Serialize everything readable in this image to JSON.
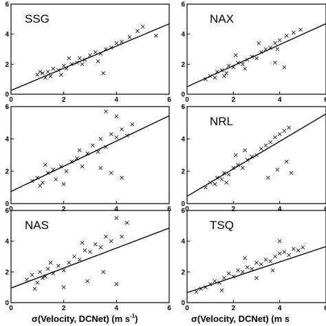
{
  "chart_data": [
    {
      "type": "scatter",
      "title": "SSG",
      "xlim": [
        0,
        6
      ],
      "ylim": [
        0,
        6
      ],
      "xticks": [
        "0",
        "2",
        "4",
        "6"
      ],
      "yticks": [
        "0",
        "2",
        "4",
        "6"
      ],
      "fit": {
        "intercept": 0.25,
        "slope": 0.74
      },
      "points": [
        [
          1.0,
          1.3
        ],
        [
          1.2,
          1.4
        ],
        [
          1.4,
          1.5
        ],
        [
          1.5,
          1.2
        ],
        [
          1.6,
          1.7
        ],
        [
          1.8,
          1.6
        ],
        [
          2.0,
          1.9
        ],
        [
          2.1,
          1.7
        ],
        [
          2.3,
          2.0
        ],
        [
          2.5,
          2.1
        ],
        [
          2.6,
          2.4
        ],
        [
          2.8,
          2.3
        ],
        [
          3.0,
          2.6
        ],
        [
          3.2,
          2.8
        ],
        [
          3.4,
          2.7
        ],
        [
          3.6,
          3.0
        ],
        [
          3.8,
          3.1
        ],
        [
          4.0,
          3.4
        ],
        [
          4.2,
          3.5
        ],
        [
          4.5,
          3.8
        ],
        [
          4.8,
          4.2
        ],
        [
          5.0,
          4.5
        ],
        [
          5.5,
          3.9
        ],
        [
          3.5,
          1.4
        ],
        [
          2.2,
          2.4
        ],
        [
          1.9,
          1.3
        ],
        [
          1.3,
          1.1
        ],
        [
          2.7,
          2.0
        ],
        [
          3.3,
          2.2
        ],
        [
          1.1,
          1.5
        ]
      ]
    },
    {
      "type": "scatter",
      "title": "NAX",
      "xlim": [
        0,
        6
      ],
      "ylim": [
        0,
        6
      ],
      "xticks": [
        "0",
        "2",
        "4",
        "6"
      ],
      "yticks": [
        "0",
        "2",
        "4",
        "6"
      ],
      "fit": {
        "intercept": 0.5,
        "slope": 0.7
      },
      "points": [
        [
          0.8,
          1.0
        ],
        [
          1.0,
          1.2
        ],
        [
          1.2,
          1.1
        ],
        [
          1.3,
          1.5
        ],
        [
          1.5,
          1.6
        ],
        [
          1.7,
          1.4
        ],
        [
          1.8,
          1.9
        ],
        [
          2.0,
          1.8
        ],
        [
          2.2,
          2.1
        ],
        [
          2.4,
          2.0
        ],
        [
          2.6,
          2.3
        ],
        [
          2.8,
          2.5
        ],
        [
          3.0,
          2.4
        ],
        [
          3.2,
          2.8
        ],
        [
          3.4,
          3.0
        ],
        [
          3.6,
          3.1
        ],
        [
          3.8,
          3.4
        ],
        [
          4.0,
          3.6
        ],
        [
          4.3,
          3.9
        ],
        [
          4.6,
          4.1
        ],
        [
          4.9,
          4.3
        ],
        [
          4.2,
          1.8
        ],
        [
          3.8,
          2.1
        ],
        [
          3.9,
          3.0
        ],
        [
          2.1,
          2.6
        ],
        [
          1.6,
          1.2
        ],
        [
          2.5,
          1.7
        ],
        [
          3.1,
          3.4
        ]
      ]
    },
    {
      "type": "scatter",
      "title": "",
      "xlim": [
        0,
        6
      ],
      "ylim": [
        0,
        6
      ],
      "xticks": [
        "0",
        "2",
        "4",
        "6"
      ],
      "yticks": [
        "0",
        "2",
        "4",
        "6"
      ],
      "fit": {
        "intercept": 0.75,
        "slope": 0.78
      },
      "points": [
        [
          0.8,
          1.4
        ],
        [
          1.0,
          1.6
        ],
        [
          1.2,
          1.3
        ],
        [
          1.4,
          1.9
        ],
        [
          1.6,
          2.1
        ],
        [
          1.7,
          1.5
        ],
        [
          1.9,
          2.3
        ],
        [
          2.1,
          2.0
        ],
        [
          2.3,
          2.6
        ],
        [
          2.5,
          2.8
        ],
        [
          2.7,
          2.3
        ],
        [
          2.9,
          3.1
        ],
        [
          3.1,
          3.6
        ],
        [
          3.3,
          3.2
        ],
        [
          3.4,
          4.0
        ],
        [
          3.6,
          3.5
        ],
        [
          3.8,
          4.3
        ],
        [
          4.0,
          4.1
        ],
        [
          4.2,
          4.6
        ],
        [
          4.4,
          4.2
        ],
        [
          3.6,
          5.7
        ],
        [
          4.0,
          5.4
        ],
        [
          4.6,
          4.9
        ],
        [
          3.8,
          1.9
        ],
        [
          4.2,
          1.6
        ],
        [
          3.4,
          2.2
        ],
        [
          1.3,
          2.4
        ],
        [
          2.0,
          1.2
        ],
        [
          2.6,
          3.3
        ],
        [
          1.1,
          1.1
        ]
      ]
    },
    {
      "type": "scatter",
      "title": "NRL",
      "xlim": [
        0,
        6
      ],
      "ylim": [
        0,
        6
      ],
      "xticks": [
        "0",
        "2",
        "4",
        "6"
      ],
      "yticks": [
        "0",
        "2",
        "4",
        "6"
      ],
      "fit": {
        "intercept": 0.45,
        "slope": 0.85
      },
      "points": [
        [
          0.8,
          1.0
        ],
        [
          1.0,
          1.3
        ],
        [
          1.2,
          1.2
        ],
        [
          1.3,
          1.6
        ],
        [
          1.5,
          1.5
        ],
        [
          1.6,
          1.9
        ],
        [
          1.8,
          1.8
        ],
        [
          2.0,
          2.2
        ],
        [
          2.2,
          2.4
        ],
        [
          2.4,
          2.2
        ],
        [
          2.6,
          2.7
        ],
        [
          2.8,
          2.9
        ],
        [
          3.0,
          3.0
        ],
        [
          3.2,
          3.4
        ],
        [
          3.4,
          3.6
        ],
        [
          3.6,
          3.8
        ],
        [
          3.8,
          4.1
        ],
        [
          4.0,
          4.3
        ],
        [
          4.2,
          4.5
        ],
        [
          4.4,
          4.7
        ],
        [
          4.5,
          1.9
        ],
        [
          3.9,
          2.1
        ],
        [
          3.5,
          1.6
        ],
        [
          4.3,
          2.6
        ],
        [
          2.1,
          3.0
        ],
        [
          1.7,
          1.3
        ],
        [
          2.5,
          3.3
        ]
      ]
    },
    {
      "type": "scatter",
      "title": "NAS",
      "xlim": [
        0,
        6
      ],
      "ylim": [
        0,
        6
      ],
      "xticks": [
        "0",
        "2",
        "4",
        "6"
      ],
      "yticks": [
        "0",
        "2",
        "4",
        "6"
      ],
      "fit": {
        "intercept": 0.95,
        "slope": 0.65
      },
      "points": [
        [
          0.6,
          1.5
        ],
        [
          0.8,
          1.8
        ],
        [
          1.0,
          1.3
        ],
        [
          1.1,
          2.0
        ],
        [
          1.3,
          1.7
        ],
        [
          1.4,
          2.2
        ],
        [
          1.6,
          1.9
        ],
        [
          1.8,
          2.4
        ],
        [
          2.0,
          2.1
        ],
        [
          2.2,
          2.6
        ],
        [
          2.4,
          3.0
        ],
        [
          2.6,
          2.8
        ],
        [
          2.8,
          3.4
        ],
        [
          3.0,
          3.3
        ],
        [
          3.2,
          3.8
        ],
        [
          3.4,
          3.6
        ],
        [
          3.6,
          4.3
        ],
        [
          3.8,
          4.0
        ],
        [
          4.0,
          5.5
        ],
        [
          4.2,
          4.3
        ],
        [
          4.4,
          5.2
        ],
        [
          3.5,
          2.0
        ],
        [
          2.9,
          1.4
        ],
        [
          4.0,
          1.2
        ],
        [
          2.0,
          1.0
        ],
        [
          0.9,
          0.9
        ],
        [
          1.5,
          2.6
        ],
        [
          2.7,
          3.9
        ],
        [
          1.2,
          1.6
        ]
      ]
    },
    {
      "type": "scatter",
      "title": "TSQ",
      "xlim": [
        0,
        6
      ],
      "ylim": [
        0,
        6
      ],
      "xticks": [
        "0",
        "2",
        "4",
        "6"
      ],
      "yticks": [
        "0",
        "2",
        "4",
        "6"
      ],
      "fit": {
        "intercept": 0.65,
        "slope": 0.5
      },
      "points": [
        [
          0.4,
          0.7
        ],
        [
          0.6,
          0.9
        ],
        [
          0.8,
          1.0
        ],
        [
          1.0,
          1.2
        ],
        [
          1.2,
          1.4
        ],
        [
          1.4,
          1.3
        ],
        [
          1.6,
          1.6
        ],
        [
          1.8,
          1.9
        ],
        [
          2.0,
          1.7
        ],
        [
          2.2,
          2.1
        ],
        [
          2.4,
          2.0
        ],
        [
          2.6,
          2.3
        ],
        [
          2.8,
          2.2
        ],
        [
          3.0,
          2.6
        ],
        [
          3.2,
          2.5
        ],
        [
          3.4,
          2.8
        ],
        [
          3.6,
          2.7
        ],
        [
          3.8,
          3.0
        ],
        [
          4.0,
          3.2
        ],
        [
          4.2,
          3.3
        ],
        [
          4.4,
          3.1
        ],
        [
          4.6,
          3.5
        ],
        [
          4.8,
          3.4
        ],
        [
          5.0,
          3.6
        ],
        [
          4.0,
          4.0
        ],
        [
          3.0,
          1.6
        ],
        [
          2.5,
          2.9
        ],
        [
          1.5,
          0.8
        ],
        [
          3.7,
          2.1
        ]
      ]
    }
  ],
  "xlabel": {
    "text": "σ(Velocity, DCNet)  (m s",
    "sup": "-1",
    "tail": ")"
  },
  "xlabel_right_partial": "σ(Velocity, DCNet)  (m s"
}
